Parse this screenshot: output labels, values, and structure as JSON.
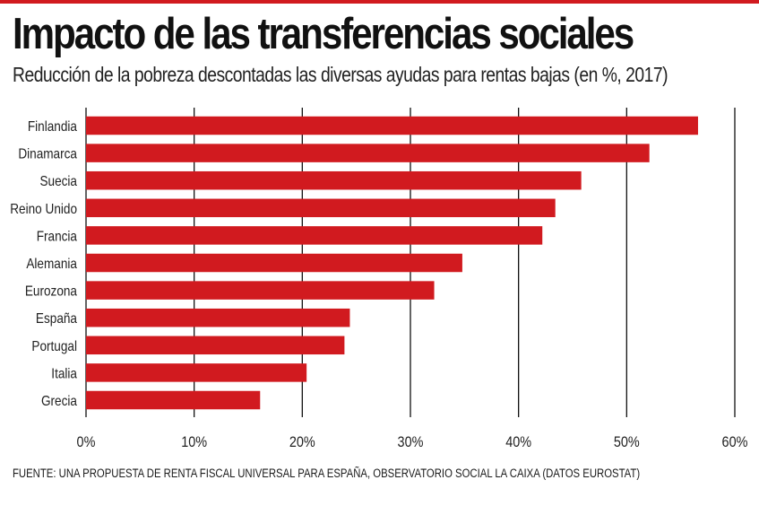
{
  "header": {
    "title": "Impacto de las transferencias sociales",
    "subtitle": "Reducción de la pobreza descontadas las diversas ayudas para rentas bajas (en %, 2017)"
  },
  "footer": {
    "source": "FUENTE: UNA PROPUESTA DE RENTA FISCAL UNIVERSAL PARA ESPAÑA, OBSERVATORIO SOCIAL LA CAIXA (DATOS EUROSTAT)"
  },
  "colors": {
    "bar": "#d11a1f",
    "gridline": "#111111",
    "accent_rule": "#d11a1f"
  },
  "chart_data": {
    "type": "bar",
    "orientation": "horizontal",
    "categories": [
      "Finlandia",
      "Dinamarca",
      "Suecia",
      "Reino Unido",
      "Francia",
      "Alemania",
      "Eurozona",
      "España",
      "Portugal",
      "Italia",
      "Grecia"
    ],
    "values": [
      56.6,
      52.1,
      45.8,
      43.4,
      42.2,
      34.8,
      32.2,
      24.4,
      23.9,
      20.4,
      16.1
    ],
    "xlim": [
      0,
      60
    ],
    "xticks": [
      0,
      10,
      20,
      30,
      40,
      50,
      60
    ],
    "xtick_labels": [
      "0%",
      "10%",
      "20%",
      "30%",
      "40%",
      "50%",
      "60%"
    ],
    "grid": true,
    "xlabel": "",
    "ylabel": ""
  }
}
